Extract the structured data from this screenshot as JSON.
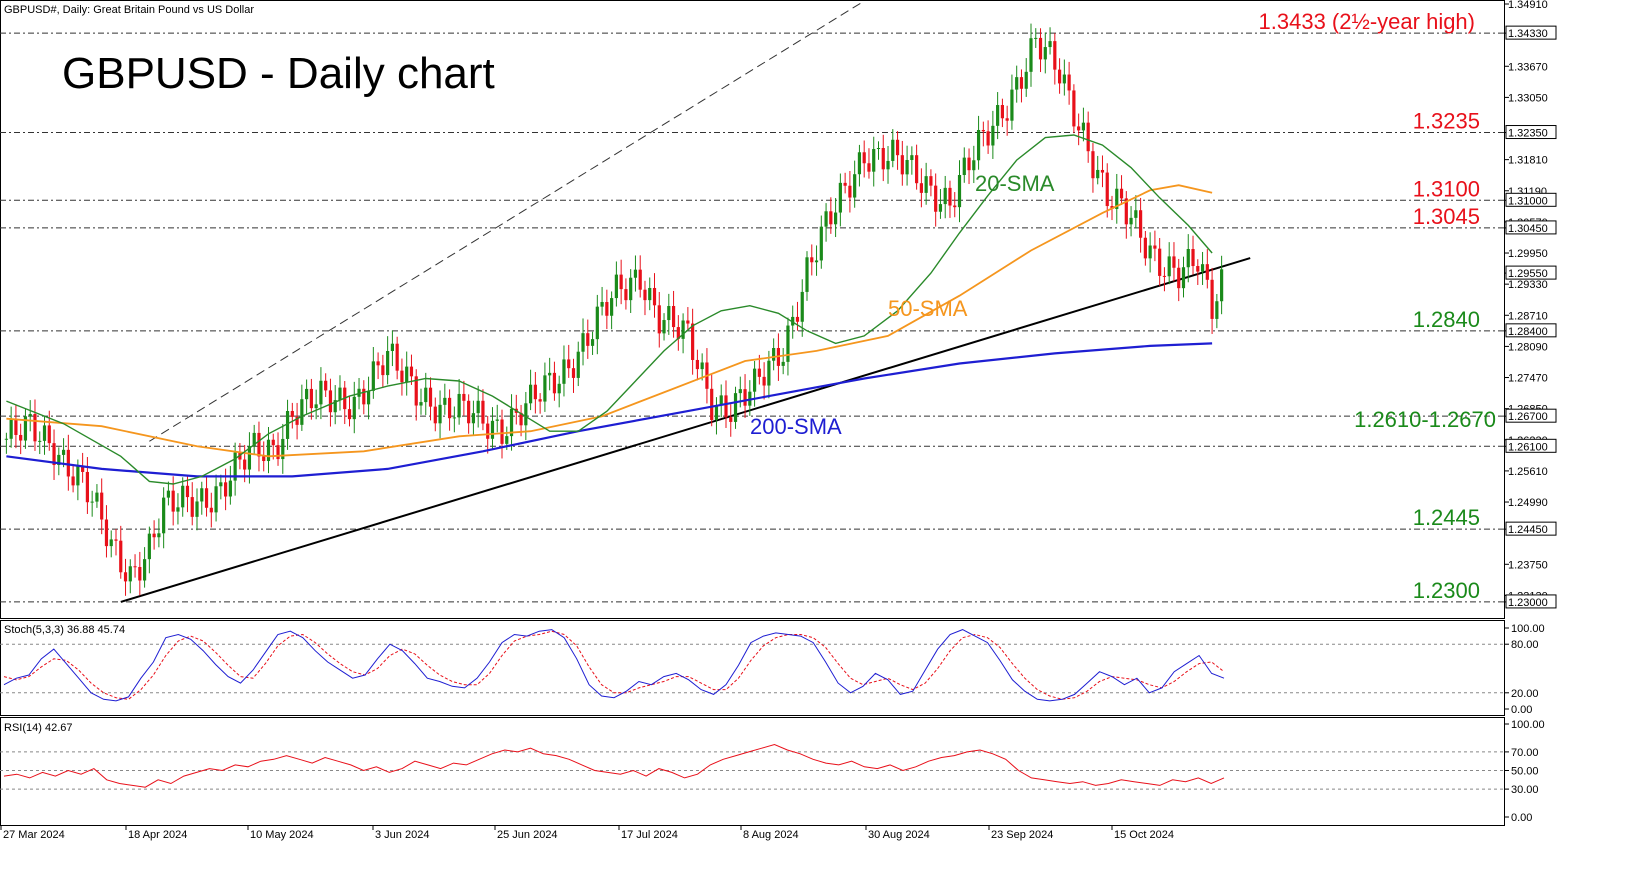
{
  "header": {
    "symbol_line": "GBPUSD#, Daily:  Great Britain Pound vs US Dollar"
  },
  "overlay_title": "GBPUSD - Daily chart",
  "colors": {
    "up": "#1a8a1a",
    "down": "#e8101a",
    "sma20": "#2a8a2a",
    "sma50": "#f5961e",
    "sma200": "#1e1ed2",
    "trend": "#000000",
    "hline": "#333333",
    "red_label": "#e8101a",
    "green_label": "#1a8a1a",
    "blue_label": "#1e1ed2",
    "stoch_main": "#1e1ed2",
    "stoch_signal": "#e8101a",
    "rsi": "#e8101a"
  },
  "chart_data": [
    {
      "type": "candlestick",
      "title": "GBPUSD - Daily chart",
      "x_dates": [
        "27 Mar 2024",
        "18 Apr 2024",
        "10 May 2024",
        "3 Jun 2024",
        "25 Jun 2024",
        "17 Jul 2024",
        "8 Aug 2024",
        "30 Aug 2024",
        "23 Sep 2024",
        "15 Oct 2024"
      ],
      "y_ticks": [
        "1.34910",
        "1.34330",
        "1.33670",
        "1.33050",
        "1.32350",
        "1.31810",
        "1.31190",
        "1.31000",
        "1.30570",
        "1.30450",
        "1.29950",
        "1.29550",
        "1.29330",
        "1.28710",
        "1.28400",
        "1.28090",
        "1.27470",
        "1.26850",
        "1.26700",
        "1.26230",
        "1.26100",
        "1.25610",
        "1.24990",
        "1.24450",
        "1.23750",
        "1.23130",
        "1.23000"
      ],
      "ylim": [
        1.2268,
        1.3497
      ],
      "levels": [
        {
          "label": "1.3433 (2½-year high)",
          "value": 1.3433,
          "color": "red"
        },
        {
          "label": "1.3235",
          "value": 1.3235,
          "color": "red"
        },
        {
          "label": "1.3100",
          "value": 1.31,
          "color": "red"
        },
        {
          "label": "1.3045",
          "value": 1.3045,
          "color": "red"
        },
        {
          "label": "1.2840",
          "value": 1.284,
          "color": "green"
        },
        {
          "label": "1.2610-1.2670",
          "value": 1.261,
          "value2": 1.267,
          "color": "green"
        },
        {
          "label": "1.2445",
          "value": 1.2445,
          "color": "green"
        },
        {
          "label": "1.2300",
          "value": 1.23,
          "color": "green"
        }
      ],
      "series_labels": [
        {
          "name": "20-SMA",
          "color": "sma20"
        },
        {
          "name": "50-SMA",
          "color": "sma50"
        },
        {
          "name": "200-SMA",
          "color": "sma200"
        }
      ],
      "sma20_path": [
        [
          0,
          1.27
        ],
        [
          12,
          1.2655
        ],
        [
          24,
          1.259
        ],
        [
          30,
          1.254
        ],
        [
          35,
          1.2535
        ],
        [
          41,
          1.255
        ],
        [
          48,
          1.2585
        ],
        [
          55,
          1.2635
        ],
        [
          62,
          1.267
        ],
        [
          72,
          1.271
        ],
        [
          80,
          1.273
        ],
        [
          88,
          1.2745
        ],
        [
          95,
          1.274
        ],
        [
          102,
          1.271
        ],
        [
          108,
          1.2675
        ],
        [
          114,
          1.264
        ],
        [
          120,
          1.264
        ],
        [
          126,
          1.268
        ],
        [
          131,
          1.273
        ],
        [
          138,
          1.28
        ],
        [
          144,
          1.285
        ],
        [
          150,
          1.288
        ],
        [
          156,
          1.289
        ],
        [
          162,
          1.2875
        ],
        [
          168,
          1.284
        ],
        [
          174,
          1.2815
        ],
        [
          180,
          1.283
        ],
        [
          187,
          1.288
        ],
        [
          194,
          1.2955
        ],
        [
          200,
          1.3035
        ],
        [
          206,
          1.311
        ],
        [
          212,
          1.318
        ],
        [
          218,
          1.3225
        ],
        [
          224,
          1.323
        ],
        [
          230,
          1.321
        ],
        [
          236,
          1.3165
        ],
        [
          242,
          1.3105
        ],
        [
          248,
          1.305
        ],
        [
          253,
          1.2995
        ]
      ],
      "sma50_path": [
        [
          0,
          1.2665
        ],
        [
          20,
          1.265
        ],
        [
          40,
          1.261
        ],
        [
          55,
          1.259
        ],
        [
          75,
          1.26
        ],
        [
          95,
          1.263
        ],
        [
          110,
          1.264
        ],
        [
          125,
          1.267
        ],
        [
          140,
          1.2725
        ],
        [
          155,
          1.278
        ],
        [
          170,
          1.28
        ],
        [
          185,
          1.283
        ],
        [
          200,
          1.291
        ],
        [
          215,
          1.3
        ],
        [
          230,
          1.3075
        ],
        [
          240,
          1.312
        ],
        [
          246,
          1.313
        ],
        [
          253,
          1.3115
        ]
      ],
      "sma200_path": [
        [
          0,
          1.259
        ],
        [
          20,
          1.2565
        ],
        [
          40,
          1.255
        ],
        [
          60,
          1.255
        ],
        [
          80,
          1.2565
        ],
        [
          100,
          1.26
        ],
        [
          120,
          1.264
        ],
        [
          140,
          1.2675
        ],
        [
          160,
          1.271
        ],
        [
          180,
          1.2745
        ],
        [
          200,
          1.2775
        ],
        [
          220,
          1.2795
        ],
        [
          240,
          1.281
        ],
        [
          253,
          1.2815
        ]
      ],
      "trend_lower": [
        [
          24,
          1.23
        ],
        [
          261,
          1.2985
        ]
      ],
      "trend_upper": [
        [
          30,
          1.262
        ],
        [
          180,
          1.3497
        ]
      ],
      "candles_keys": [
        [
          0,
          1.2625
        ],
        [
          5,
          1.264
        ],
        [
          10,
          1.2615
        ],
        [
          16,
          1.2538
        ],
        [
          22,
          1.2408
        ],
        [
          26,
          1.236
        ],
        [
          30,
          1.241
        ],
        [
          33,
          1.248
        ],
        [
          38,
          1.25
        ],
        [
          45,
          1.2525
        ],
        [
          52,
          1.26
        ],
        [
          56,
          1.261
        ],
        [
          60,
          1.268
        ],
        [
          66,
          1.27
        ],
        [
          73,
          1.2706
        ],
        [
          80,
          1.278
        ],
        [
          86,
          1.2728
        ],
        [
          92,
          1.268
        ],
        [
          98,
          1.267
        ],
        [
          104,
          1.2652
        ],
        [
          110,
          1.269
        ],
        [
          116,
          1.2752
        ],
        [
          122,
          1.283
        ],
        [
          128,
          1.291
        ],
        [
          133,
          1.2956
        ],
        [
          137,
          1.287
        ],
        [
          143,
          1.282
        ],
        [
          148,
          1.2705
        ],
        [
          152,
          1.269
        ],
        [
          157,
          1.272
        ],
        [
          163,
          1.281
        ],
        [
          168,
          1.296
        ],
        [
          174,
          1.308
        ],
        [
          180,
          1.32
        ],
        [
          186,
          1.318
        ],
        [
          192,
          1.314
        ],
        [
          198,
          1.31
        ],
        [
          204,
          1.32
        ],
        [
          210,
          1.33
        ],
        [
          216,
          1.341
        ],
        [
          221,
          1.335
        ],
        [
          226,
          1.324
        ],
        [
          231,
          1.31
        ],
        [
          236,
          1.306
        ],
        [
          241,
          1.2995
        ],
        [
          246,
          1.295
        ],
        [
          250,
          1.297
        ],
        [
          253,
          1.289
        ],
        [
          255,
          1.2945
        ]
      ]
    },
    {
      "type": "line",
      "title": "Stoch(5,3,3) 36.88 45.74",
      "y_ticks": [
        "100.00",
        "80.00",
        "20.00",
        "0.00"
      ],
      "ylim": [
        0,
        100
      ],
      "levels": [
        20,
        80
      ],
      "main": [
        30,
        38,
        42,
        62,
        74,
        56,
        38,
        20,
        12,
        10,
        15,
        38,
        58,
        88,
        92,
        86,
        72,
        55,
        40,
        32,
        48,
        70,
        92,
        96,
        88,
        72,
        58,
        48,
        38,
        42,
        62,
        80,
        72,
        56,
        38,
        34,
        28,
        26,
        38,
        58,
        82,
        92,
        90,
        96,
        98,
        88,
        62,
        30,
        16,
        14,
        22,
        34,
        30,
        40,
        44,
        36,
        24,
        18,
        30,
        54,
        82,
        90,
        94,
        92,
        90,
        82,
        58,
        32,
        20,
        28,
        44,
        36,
        18,
        22,
        48,
        74,
        92,
        98,
        90,
        82,
        60,
        36,
        22,
        12,
        10,
        12,
        18,
        32,
        46,
        40,
        30,
        38,
        20,
        26,
        46,
        56,
        66,
        44,
        38
      ],
      "signal": [
        40,
        36,
        40,
        52,
        62,
        60,
        48,
        32,
        20,
        14,
        12,
        24,
        42,
        66,
        84,
        90,
        84,
        70,
        54,
        40,
        38,
        56,
        78,
        90,
        92,
        82,
        68,
        56,
        46,
        42,
        50,
        66,
        74,
        68,
        54,
        42,
        34,
        30,
        30,
        44,
        66,
        84,
        90,
        92,
        96,
        92,
        78,
        52,
        30,
        20,
        20,
        26,
        30,
        34,
        40,
        40,
        32,
        24,
        24,
        38,
        60,
        78,
        88,
        92,
        92,
        88,
        76,
        56,
        38,
        30,
        34,
        38,
        30,
        24,
        32,
        50,
        72,
        88,
        92,
        88,
        76,
        56,
        38,
        24,
        16,
        12,
        14,
        22,
        34,
        40,
        38,
        36,
        30,
        26,
        34,
        46,
        56,
        58,
        46
      ]
    },
    {
      "type": "line",
      "title": "RSI(14) 42.67",
      "y_ticks": [
        "100.00",
        "70.00",
        "50.00",
        "30.00",
        "0.00"
      ],
      "ylim": [
        0,
        100
      ],
      "levels": [
        30,
        50,
        70
      ],
      "values": [
        44,
        46,
        42,
        48,
        44,
        50,
        46,
        52,
        40,
        36,
        34,
        32,
        40,
        36,
        44,
        48,
        52,
        50,
        56,
        54,
        60,
        62,
        66,
        62,
        58,
        64,
        60,
        56,
        50,
        54,
        48,
        52,
        60,
        56,
        52,
        58,
        56,
        62,
        68,
        72,
        70,
        74,
        68,
        66,
        62,
        56,
        50,
        48,
        46,
        50,
        44,
        52,
        48,
        42,
        46,
        56,
        62,
        66,
        70,
        74,
        78,
        72,
        68,
        62,
        58,
        56,
        60,
        54,
        52,
        56,
        50,
        54,
        60,
        64,
        66,
        70,
        72,
        68,
        62,
        50,
        42,
        40,
        38,
        36,
        38,
        34,
        36,
        40,
        38,
        36,
        34,
        40,
        38,
        42,
        36,
        42
      ]
    }
  ]
}
